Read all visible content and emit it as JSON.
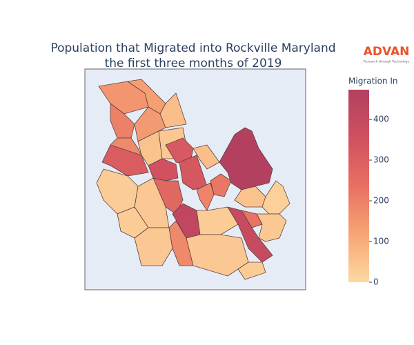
{
  "chart_data": {
    "type": "choropleth",
    "title": [
      "Population that Migrated into Rockville Maryland",
      "the first three months of 2019"
    ],
    "colorbar_title": "Migration In",
    "zlim": [
      0,
      473
    ],
    "zticks": [
      0,
      100,
      200,
      300,
      400
    ],
    "colorscale": [
      "#fdd9a1",
      "#f7a475",
      "#e87062",
      "#d05060",
      "#b3405f"
    ],
    "values": [
      150,
      130,
      60,
      200,
      140,
      180,
      310,
      50,
      40,
      320,
      350,
      330,
      60,
      220,
      470,
      270,
      190,
      420,
      30,
      40,
      30,
      40,
      180,
      30,
      40,
      390,
      230,
      50,
      20,
      40,
      30
    ]
  },
  "logo": {
    "name": "ADVAN",
    "tagline": "Research through Technology"
  }
}
